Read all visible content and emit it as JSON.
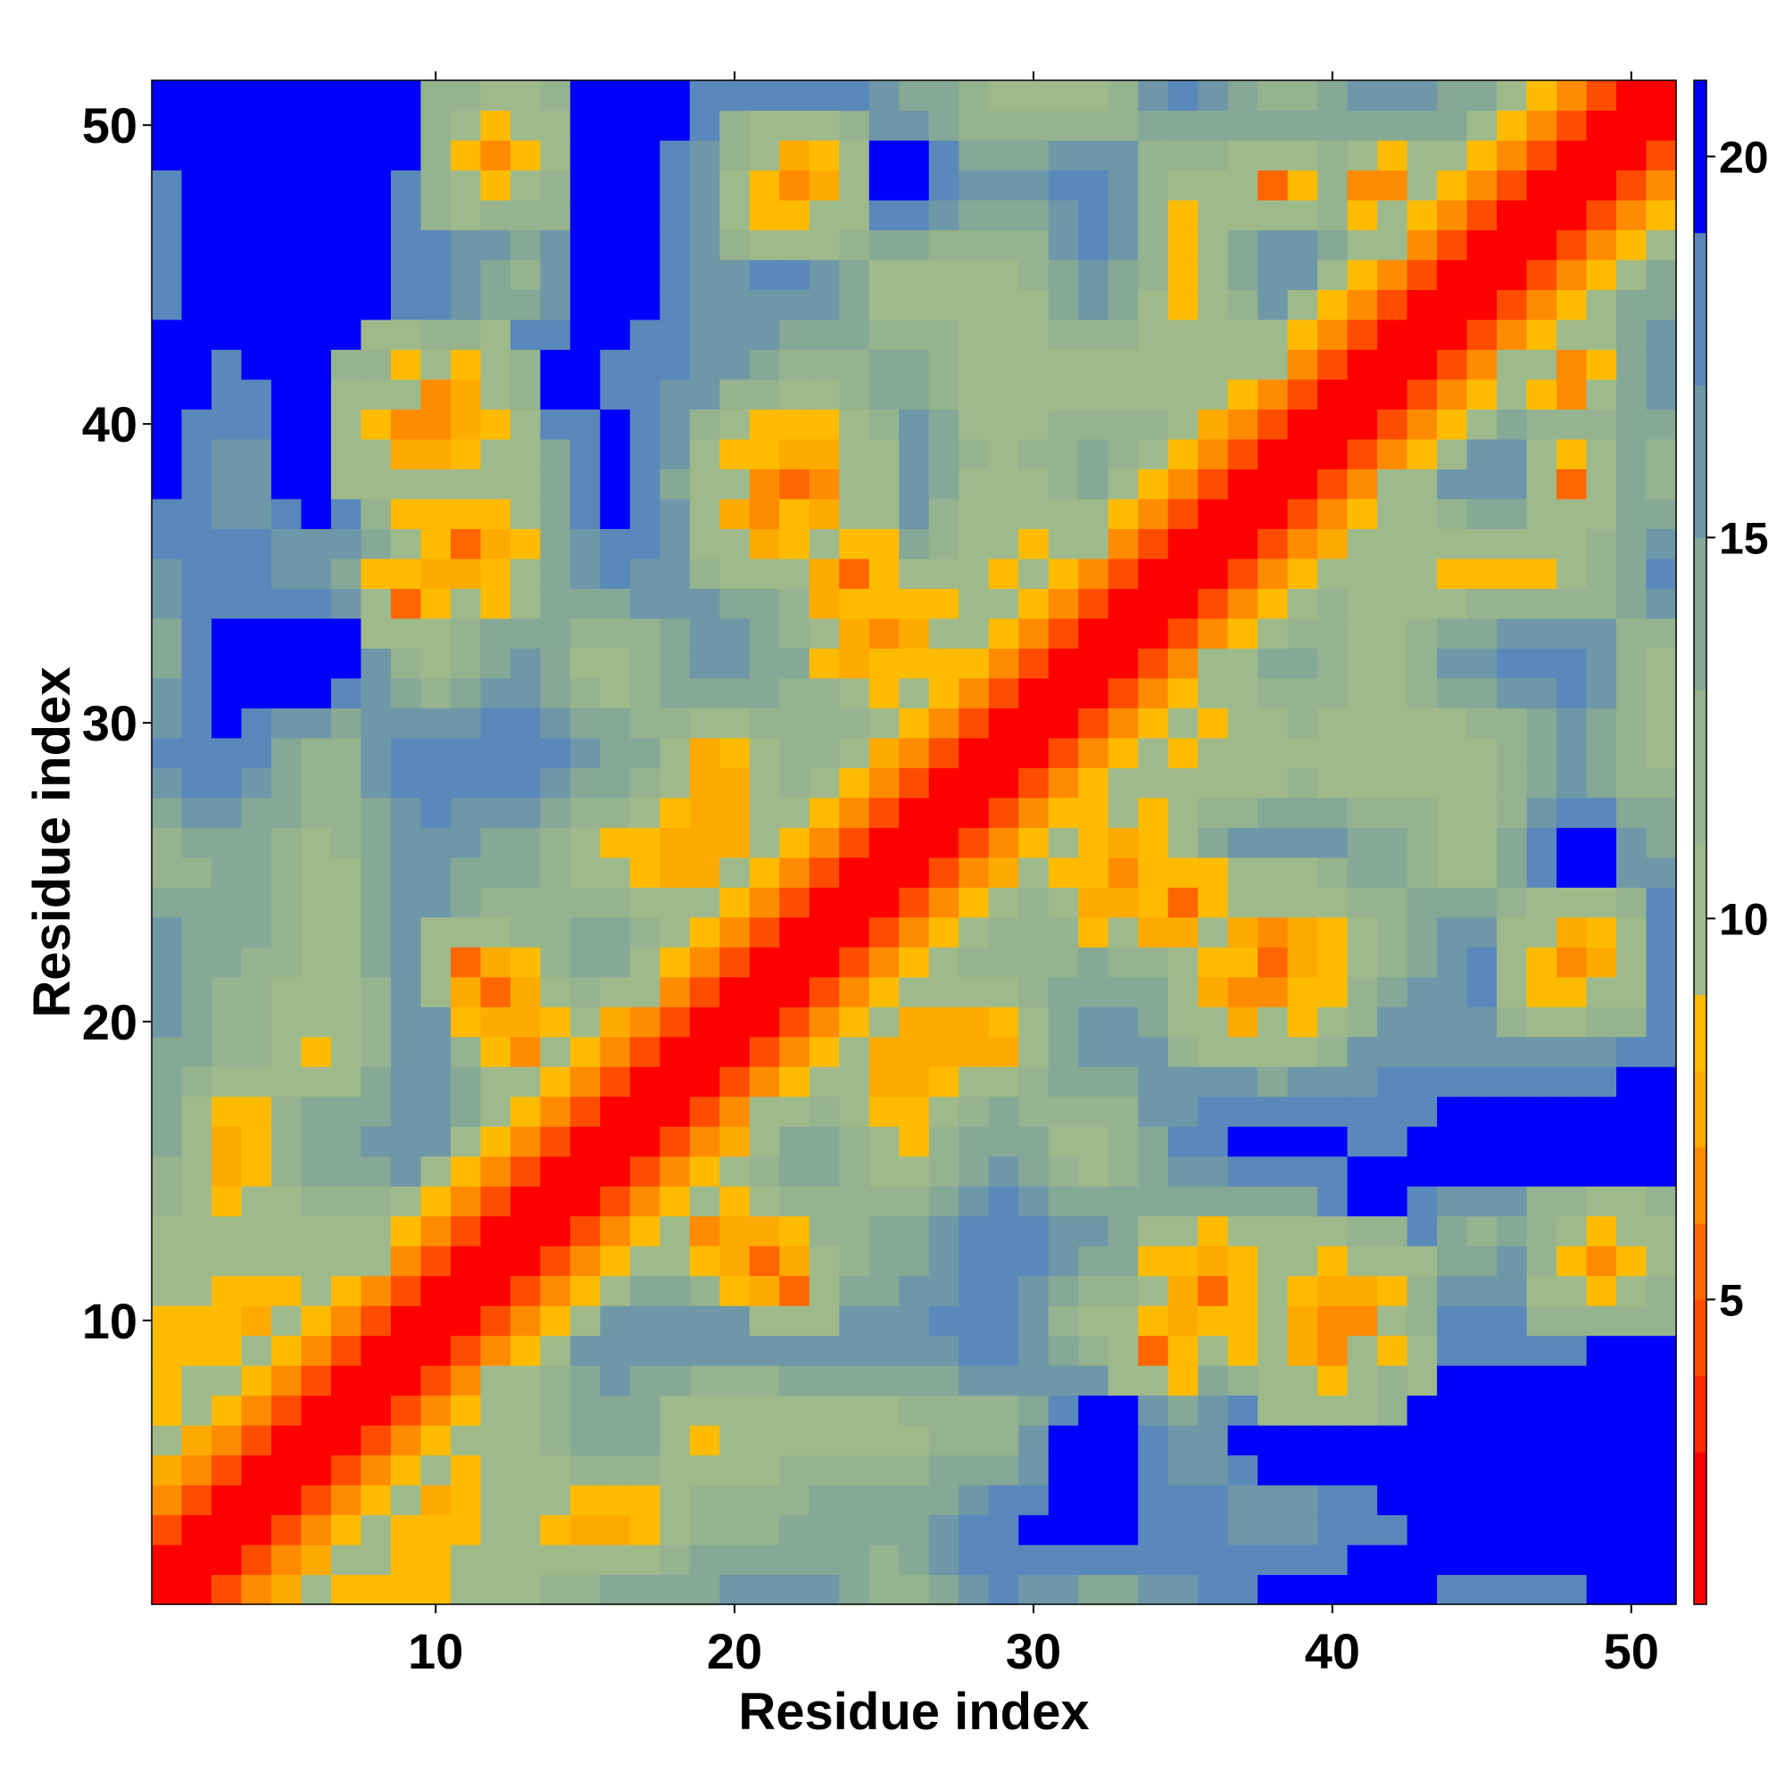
{
  "chart_data": {
    "type": "heatmap",
    "xlabel": "Residue index",
    "ylabel": "Residue index",
    "n": 51,
    "xlim": [
      0.5,
      51.5
    ],
    "ylim": [
      0.5,
      51.5
    ],
    "x_ticks": [
      10,
      20,
      30,
      40,
      50
    ],
    "y_ticks": [
      10,
      20,
      30,
      40,
      50
    ],
    "colorbar": {
      "ticks": [
        5,
        10,
        15,
        20
      ],
      "range": [
        1,
        21
      ],
      "levels": [
        {
          "upper": 3,
          "color": "#ff0000"
        },
        {
          "upper": 4,
          "color": "#ff2a00"
        },
        {
          "upper": 5,
          "color": "#ff4d00"
        },
        {
          "upper": 6,
          "color": "#ff6600"
        },
        {
          "upper": 7,
          "color": "#ff8c00"
        },
        {
          "upper": 8,
          "color": "#ffaa00"
        },
        {
          "upper": 9,
          "color": "#ffbb00"
        },
        {
          "upper": 11,
          "color": "#9fba8a"
        },
        {
          "upper": 13,
          "color": "#95b38e"
        },
        {
          "upper": 15,
          "color": "#86a896"
        },
        {
          "upper": 17,
          "color": "#6e97a8"
        },
        {
          "upper": 19,
          "color": "#5a88bb"
        },
        {
          "upper": 21,
          "color": "#0000ff"
        }
      ]
    },
    "grid": false,
    "value_description": "inter-residue distance map, symmetric; each cell (i, j) colored by distance level"
  }
}
